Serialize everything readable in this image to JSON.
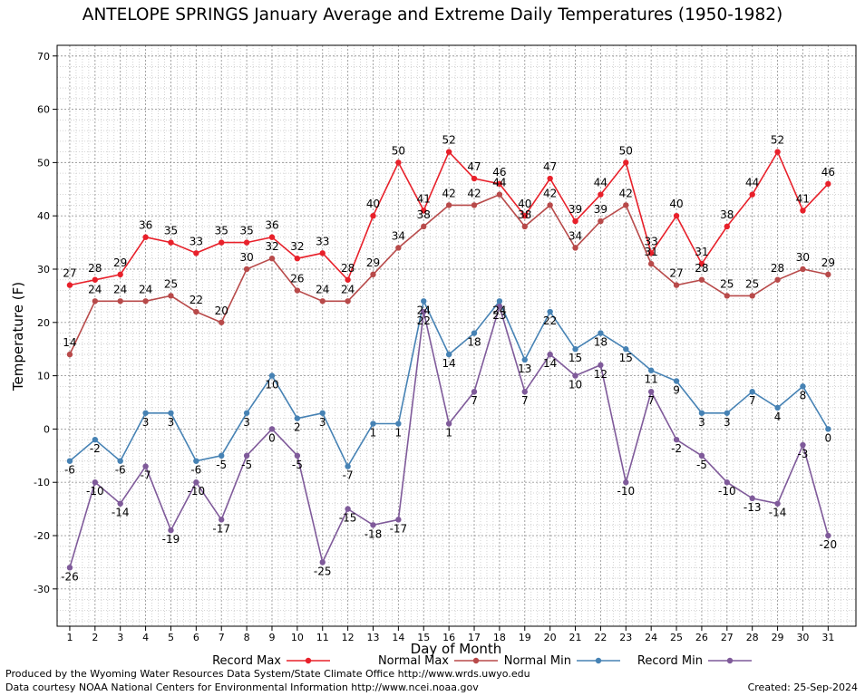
{
  "chart_data": {
    "type": "line",
    "title": "ANTELOPE SPRINGS January Average and Extreme Daily Temperatures (1950-1982)",
    "xlabel": "Day of Month",
    "ylabel": "Temperature (F)",
    "ylim": [
      -37,
      72
    ],
    "yticks": [
      -30,
      -20,
      -10,
      0,
      10,
      20,
      30,
      40,
      50,
      60,
      70
    ],
    "x": [
      1,
      2,
      3,
      4,
      5,
      6,
      7,
      8,
      9,
      10,
      11,
      12,
      13,
      14,
      15,
      16,
      17,
      18,
      19,
      20,
      21,
      22,
      23,
      24,
      25,
      26,
      27,
      28,
      29,
      30,
      31
    ],
    "grid": true,
    "legend_position": "bottom",
    "series": [
      {
        "name": "Record Max",
        "color": "#e8202a",
        "values": [
          27,
          28,
          29,
          36,
          35,
          33,
          35,
          35,
          36,
          32,
          33,
          28,
          40,
          50,
          41,
          52,
          47,
          46,
          40,
          47,
          39,
          44,
          50,
          33,
          40,
          31,
          38,
          44,
          52,
          41,
          46
        ]
      },
      {
        "name": "Normal Max",
        "color": "#b84a4a",
        "values": [
          14,
          24,
          24,
          24,
          25,
          22,
          20,
          30,
          32,
          26,
          24,
          24,
          29,
          34,
          38,
          42,
          42,
          44,
          38,
          42,
          34,
          39,
          42,
          31,
          27,
          28,
          25,
          25,
          28,
          30,
          29
        ]
      },
      {
        "name": "Normal Min",
        "color": "#4682b4",
        "values": [
          -6,
          -2,
          -6,
          3,
          3,
          -6,
          -5,
          3,
          10,
          2,
          3,
          -7,
          1,
          1,
          24,
          14,
          18,
          24,
          13,
          22,
          15,
          18,
          15,
          11,
          9,
          3,
          3,
          7,
          4,
          8,
          0
        ]
      },
      {
        "name": "Record Min",
        "color": "#7f5a9a",
        "values": [
          -26,
          -10,
          -14,
          -7,
          -19,
          -10,
          -17,
          -5,
          0,
          -5,
          -25,
          -15,
          -18,
          -17,
          22,
          1,
          7,
          23,
          7,
          14,
          10,
          12,
          -10,
          7,
          -2,
          -5,
          -10,
          -13,
          -14,
          -3,
          -20
        ]
      }
    ]
  },
  "footer": {
    "line1": "Produced by the Wyoming Water Resources Data System/State Climate Office http://www.wrds.uwyo.edu",
    "line2": "Data courtesy NOAA National Centers for Environmental Information http://www.ncei.noaa.gov",
    "created": "Created:  25-Sep-2024"
  }
}
